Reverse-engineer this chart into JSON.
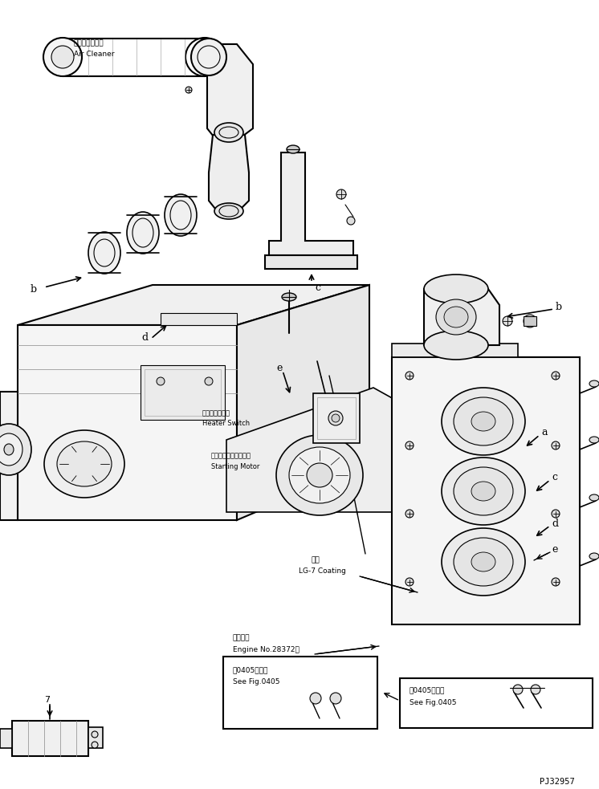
{
  "bg_color": "#ffffff",
  "fig_width": 7.46,
  "fig_height": 9.83,
  "dpi": 100,
  "watermark": "PJ32957",
  "text": {
    "air_cleaner_jp": "エアークリーナ",
    "air_cleaner_en": "Air Cleaner",
    "heater_switch_jp": "ヒータスイッチ",
    "heater_switch_en": "Heater Switch",
    "starting_motor_jp": "スターティングモータ",
    "starting_motor_en": "Starting Motor",
    "coating_jp": "塗布",
    "coating_en": "LG-7 Coating",
    "engine_no_jp": "適用号機",
    "engine_no_en": "Engine No.28372～",
    "see_fig_jp": "第0405図参照",
    "see_fig_en": "See Fig.0405"
  }
}
